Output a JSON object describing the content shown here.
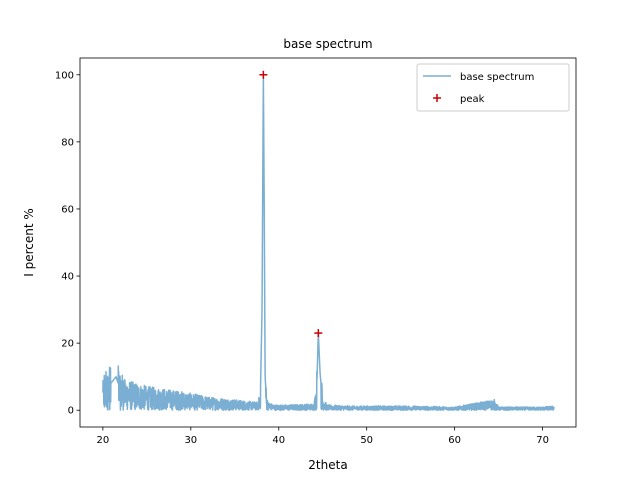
{
  "chart_data": {
    "type": "line",
    "title": "base spectrum",
    "xlabel": "2theta",
    "ylabel": "I percent %",
    "xlim": [
      17.4,
      73.8
    ],
    "ylim": [
      -5,
      105
    ],
    "xticks": [
      20,
      30,
      40,
      50,
      60,
      70
    ],
    "yticks": [
      0,
      20,
      40,
      60,
      80,
      100
    ],
    "grid": false,
    "legend_position": "upper right",
    "series": [
      {
        "name": "base spectrum",
        "kind": "line",
        "color": "#7aaed3",
        "x_range": [
          20,
          71.3
        ],
        "x": [
          20.0,
          21.5,
          22.0,
          25.0,
          29.0,
          32.0,
          35.0,
          37.5,
          37.9,
          38.1,
          38.25,
          38.35,
          38.45,
          38.6,
          38.8,
          39.5,
          41.0,
          44.0,
          44.3,
          44.5,
          44.7,
          45.0,
          45.5,
          48.0,
          55.0,
          60.0,
          64.5,
          65.0,
          70.0,
          71.3
        ],
        "y": [
          5,
          10,
          6,
          4.5,
          3.5,
          2.5,
          2.0,
          1.5,
          3.0,
          30.0,
          100.0,
          60.0,
          10.0,
          3.0,
          1.5,
          1.0,
          1.0,
          1.2,
          5.0,
          23.0,
          11.0,
          2.5,
          1.0,
          0.8,
          0.8,
          0.6,
          2.0,
          0.6,
          0.6,
          0.8
        ]
      },
      {
        "name": "peak",
        "kind": "scatter",
        "marker": "+",
        "color": "#cc0000",
        "x": [
          38.25,
          44.5
        ],
        "y": [
          100.0,
          23.0
        ]
      }
    ]
  }
}
